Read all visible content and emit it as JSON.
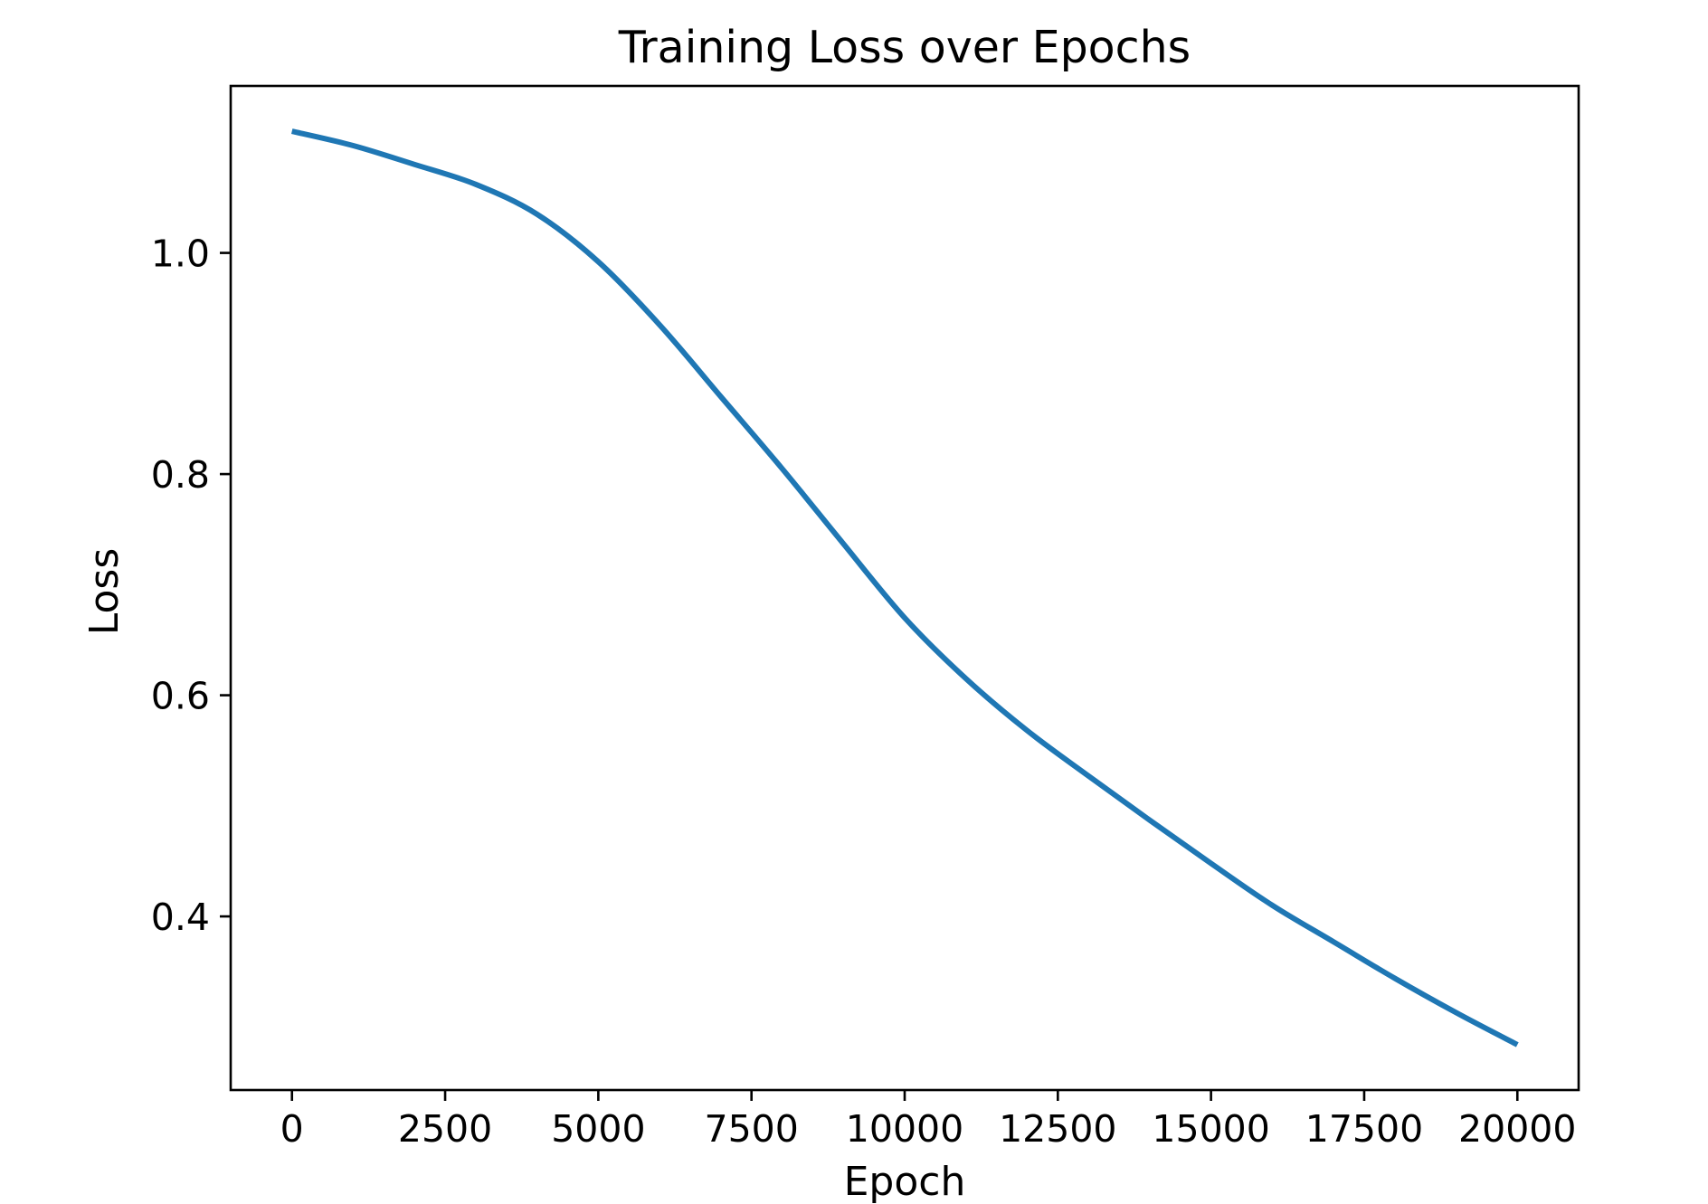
{
  "chart_data": {
    "type": "line",
    "title": "Training Loss over Epochs",
    "xlabel": "Epoch",
    "ylabel": "Loss",
    "x_ticks": [
      0,
      2500,
      5000,
      7500,
      10000,
      12500,
      15000,
      17500,
      20000
    ],
    "x_tick_labels": [
      "0",
      "2500",
      "5000",
      "7500",
      "10000",
      "12500",
      "15000",
      "17500",
      "20000"
    ],
    "y_ticks": [
      0.4,
      0.6,
      0.8,
      1.0
    ],
    "y_tick_labels": [
      "0.4",
      "0.6",
      "0.8",
      "1.0"
    ],
    "xlim": [
      -1000,
      21000
    ],
    "ylim": [
      0.243,
      1.151
    ],
    "grid": false,
    "legend_position": "none",
    "line_color": "#1f77b4",
    "series": [
      {
        "name": "Training Loss",
        "x": [
          0,
          1000,
          2000,
          3000,
          4000,
          5000,
          6000,
          7000,
          8000,
          9000,
          10000,
          11000,
          12000,
          13000,
          14000,
          15000,
          16000,
          17000,
          18000,
          19000,
          20000
        ],
        "y": [
          1.11,
          1.097,
          1.08,
          1.062,
          1.035,
          0.992,
          0.935,
          0.87,
          0.805,
          0.737,
          0.67,
          0.615,
          0.568,
          0.527,
          0.487,
          0.448,
          0.41,
          0.377,
          0.344,
          0.313,
          0.284
        ]
      }
    ]
  }
}
